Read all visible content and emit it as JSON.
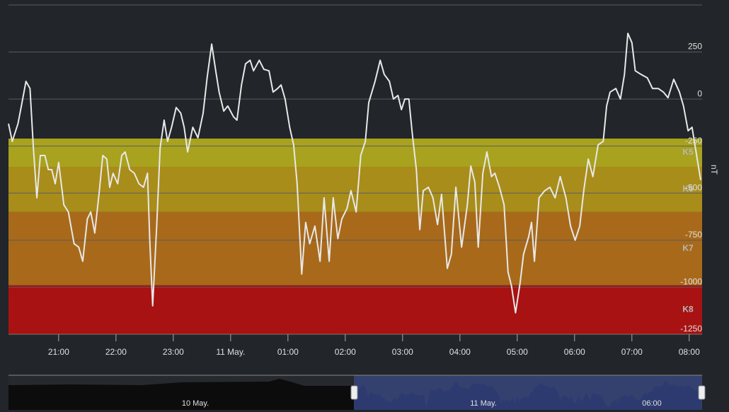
{
  "chart_data": {
    "type": "line",
    "y_axis_label": "nT",
    "xlim": [
      20.125,
      32.225
    ],
    "xticks": [
      {
        "value": 21,
        "label": "21:00"
      },
      {
        "value": 22,
        "label": "22:00"
      },
      {
        "value": 23,
        "label": "23:00"
      },
      {
        "value": 24,
        "label": "11 May."
      },
      {
        "value": 25,
        "label": "01:00"
      },
      {
        "value": 26,
        "label": "02:00"
      },
      {
        "value": 27,
        "label": "03:00"
      },
      {
        "value": 28,
        "label": "04:00"
      },
      {
        "value": 29,
        "label": "05:00"
      },
      {
        "value": 30,
        "label": "06:00"
      },
      {
        "value": 31,
        "label": "07:00"
      },
      {
        "value": 32,
        "label": "08:00"
      }
    ],
    "ylim": [
      -1250,
      500
    ],
    "yticks": [
      -1250,
      -1000,
      -750,
      -500,
      -250,
      0,
      250
    ],
    "grid": true,
    "bands": [
      {
        "label": "K5",
        "from": -360,
        "to": -210,
        "color": "#a8a21e"
      },
      {
        "label": "K6",
        "from": -600,
        "to": -360,
        "color": "#a88d1a"
      },
      {
        "label": "K7",
        "from": -990,
        "to": -600,
        "color": "#a86a1a"
      },
      {
        "label": "K8",
        "from": -1250,
        "to": -990,
        "color": "#a81212"
      }
    ],
    "series": [
      {
        "color": "#e8e8e8",
        "x": [
          20.125,
          20.19,
          20.29,
          20.35,
          20.43,
          20.5,
          20.56,
          20.62,
          20.68,
          20.76,
          20.82,
          20.88,
          20.94,
          21.0,
          21.09,
          21.17,
          21.27,
          21.35,
          21.42,
          21.5,
          21.56,
          21.63,
          21.71,
          21.77,
          21.84,
          21.89,
          21.95,
          22.03,
          22.1,
          22.16,
          22.24,
          22.32,
          22.4,
          22.48,
          22.55,
          22.59,
          22.64,
          22.71,
          22.77,
          22.84,
          22.9,
          22.97,
          23.05,
          23.13,
          23.19,
          23.25,
          23.34,
          23.43,
          23.52,
          23.59,
          23.67,
          23.74,
          23.8,
          23.88,
          23.95,
          24.05,
          24.11,
          24.19,
          24.26,
          24.34,
          24.4,
          24.5,
          24.58,
          24.67,
          24.74,
          24.82,
          24.88,
          24.95,
          25.03,
          25.1,
          25.16,
          25.24,
          25.31,
          25.38,
          25.47,
          25.56,
          25.63,
          25.72,
          25.79,
          25.87,
          25.94,
          26.03,
          26.1,
          26.19,
          26.27,
          26.35,
          26.41,
          26.52,
          26.61,
          26.68,
          26.77,
          26.84,
          26.92,
          26.98,
          27.04,
          27.11,
          27.17,
          27.24,
          27.3,
          27.36,
          27.45,
          27.53,
          27.61,
          27.68,
          27.78,
          27.85,
          27.93,
          28.03,
          28.13,
          28.19,
          28.26,
          28.32,
          28.4,
          28.47,
          28.55,
          28.61,
          28.69,
          28.77,
          28.84,
          28.9,
          28.97,
          29.05,
          29.11,
          29.2,
          29.25,
          29.3,
          29.38,
          29.48,
          29.57,
          29.66,
          29.75,
          29.85,
          29.93,
          30.01,
          30.09,
          30.16,
          30.24,
          30.32,
          30.41,
          30.5,
          30.56,
          30.62,
          30.72,
          30.8,
          30.87,
          30.93,
          31.0,
          31.06,
          31.16,
          31.27,
          31.36,
          31.46,
          31.55,
          31.63,
          31.73,
          31.83,
          31.9,
          31.98,
          32.05,
          32.14,
          32.2
        ],
        "values": [
          -131,
          -225,
          -131,
          -37,
          94,
          56,
          -262,
          -525,
          -300,
          -300,
          -375,
          -375,
          -450,
          -337,
          -562,
          -600,
          -769,
          -787,
          -862,
          -637,
          -600,
          -712,
          -487,
          -300,
          -319,
          -469,
          -394,
          -450,
          -300,
          -281,
          -375,
          -394,
          -450,
          -469,
          -394,
          -750,
          -1099,
          -675,
          -262,
          -112,
          -225,
          -150,
          -45,
          -75,
          -150,
          -281,
          -150,
          -206,
          -75,
          112,
          292,
          150,
          37,
          -64,
          -37,
          -94,
          -112,
          75,
          187,
          206,
          150,
          206,
          158,
          150,
          37,
          56,
          75,
          0,
          -150,
          -244,
          -450,
          -930,
          -656,
          -769,
          -675,
          -862,
          -525,
          -862,
          -525,
          -742,
          -637,
          -581,
          -487,
          -600,
          -300,
          -225,
          -19,
          94,
          206,
          131,
          94,
          0,
          19,
          -56,
          0,
          0,
          -187,
          -375,
          -694,
          -487,
          -469,
          -525,
          -667,
          -506,
          -900,
          -825,
          -469,
          -787,
          -562,
          -356,
          -442,
          -787,
          -394,
          -281,
          -412,
          -394,
          -469,
          -562,
          -919,
          -994,
          -1136,
          -975,
          -825,
          -731,
          -656,
          -862,
          -525,
          -487,
          -469,
          -525,
          -412,
          -525,
          -675,
          -750,
          -675,
          -487,
          -319,
          -412,
          -244,
          -225,
          -37,
          37,
          56,
          0,
          131,
          349,
          300,
          150,
          131,
          112,
          56,
          56,
          37,
          7,
          105,
          37,
          -37,
          -169,
          -150,
          -319,
          -431
        ]
      }
    ]
  },
  "navigator": {
    "labels": [
      "10 May.",
      "11 May.",
      "06:00"
    ]
  }
}
